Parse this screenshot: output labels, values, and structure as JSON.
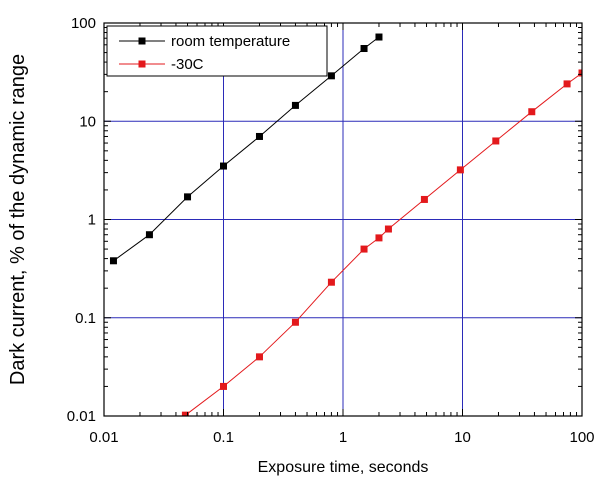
{
  "chart_data": {
    "type": "line",
    "title": "",
    "xlabel": "Exposure time, seconds",
    "ylabel": "Dark current, % of the dynamic range",
    "x_scale": "log",
    "y_scale": "log",
    "xlim": [
      0.01,
      100
    ],
    "ylim": [
      0.01,
      100
    ],
    "x_ticks": [
      0.01,
      0.1,
      1,
      10,
      100
    ],
    "x_tick_labels": [
      "0.01",
      "0.1",
      "1",
      "10",
      "100"
    ],
    "y_ticks": [
      0.01,
      0.1,
      1,
      10,
      100
    ],
    "y_tick_labels": [
      "0.01",
      "0.1",
      "1",
      "10",
      "100"
    ],
    "grid": true,
    "grid_color": "#2b2bb8",
    "legend_position": "top-left",
    "series": [
      {
        "name": "room temperature",
        "color": "#000000",
        "marker": "square",
        "x": [
          0.012,
          0.024,
          0.05,
          0.1,
          0.2,
          0.4,
          0.8,
          1.5,
          2.0
        ],
        "y": [
          0.38,
          0.7,
          1.7,
          3.5,
          7.0,
          14.5,
          29,
          55,
          72
        ]
      },
      {
        "name": "-30C",
        "color": "#e3191c",
        "marker": "square",
        "x": [
          0.048,
          0.1,
          0.2,
          0.4,
          0.8,
          1.5,
          2.0,
          2.4,
          4.8,
          9.6,
          19,
          38,
          75,
          100
        ],
        "y": [
          0.0102,
          0.02,
          0.04,
          0.09,
          0.23,
          0.5,
          0.65,
          0.8,
          1.6,
          3.2,
          6.3,
          12.5,
          24,
          31
        ]
      }
    ]
  }
}
